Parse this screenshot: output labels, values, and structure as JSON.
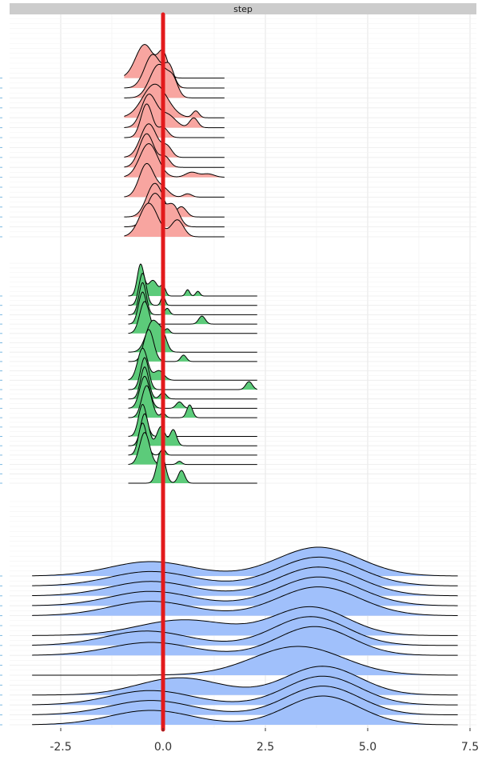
{
  "chart_data": {
    "type": "ridgeline",
    "title": "",
    "xlabel": "",
    "ylabel": "",
    "facet_label": "step",
    "x_ticks": [
      -2.5,
      0.0,
      2.5,
      5.0,
      7.5
    ],
    "x_tick_labels": [
      "-2.5",
      "0.0",
      "2.5",
      "5.0",
      "7.5"
    ],
    "xlim": [
      -3.8,
      7.8
    ],
    "grid": true,
    "vline": {
      "x": 0.0,
      "color": "#e31a1c"
    },
    "panels": [
      {
        "fill": "#f8a5a0",
        "x_range": [
          -0.95,
          1.5
        ],
        "groups": [
          {
            "rows": [
              {
                "peaks": [
                  [
                    -0.45,
                    0.22,
                    1.0
                  ],
                  [
                    0.0,
                    0.12,
                    0.7
                  ]
                ]
              },
              {
                "peaks": [
                  [
                    -0.25,
                    0.2,
                    1.0
                  ],
                  [
                    0.15,
                    0.12,
                    0.6
                  ]
                ]
              },
              {
                "peaks": [
                  [
                    -0.1,
                    0.22,
                    1.0
                  ],
                  [
                    0.25,
                    0.12,
                    0.4
                  ]
                ]
              }
            ]
          },
          {
            "rows": [
              {
                "peaks": [
                  [
                    -0.2,
                    0.3,
                    1.0
                  ],
                  [
                    0.8,
                    0.08,
                    0.2
                  ]
                ]
              },
              {
                "peaks": [
                  [
                    -0.35,
                    0.18,
                    1.0
                  ],
                  [
                    0.1,
                    0.2,
                    0.4
                  ],
                  [
                    0.75,
                    0.1,
                    0.3
                  ]
                ]
              },
              {
                "peaks": [
                  [
                    -0.4,
                    0.14,
                    1.0
                  ],
                  [
                    0.0,
                    0.12,
                    0.3
                  ]
                ]
              }
            ]
          },
          {
            "rows": [
              {
                "peaks": [
                  [
                    -0.35,
                    0.2,
                    1.0
                  ],
                  [
                    0.1,
                    0.12,
                    0.3
                  ]
                ]
              },
              {
                "peaks": [
                  [
                    -0.4,
                    0.18,
                    1.0
                  ],
                  [
                    0.05,
                    0.12,
                    0.3
                  ]
                ]
              },
              {
                "peaks": [
                  [
                    -0.35,
                    0.22,
                    1.0
                  ],
                  [
                    0.7,
                    0.15,
                    0.15
                  ],
                  [
                    1.1,
                    0.15,
                    0.1
                  ]
                ]
              }
            ]
          },
          {
            "rows": [
              {
                "peaks": [
                  [
                    -0.4,
                    0.18,
                    1.0
                  ],
                  [
                    0.0,
                    0.15,
                    0.25
                  ],
                  [
                    0.6,
                    0.1,
                    0.1
                  ]
                ]
              }
            ]
          },
          {
            "rows": [
              {
                "peaks": [
                  [
                    -0.2,
                    0.2,
                    1.0
                  ],
                  [
                    0.45,
                    0.12,
                    0.3
                  ]
                ]
              },
              {
                "peaks": [
                  [
                    -0.2,
                    0.2,
                    1.0
                  ],
                  [
                    0.25,
                    0.15,
                    0.6
                  ]
                ]
              },
              {
                "peaks": [
                  [
                    -0.35,
                    0.22,
                    1.0
                  ],
                  [
                    0.35,
                    0.15,
                    0.5
                  ]
                ]
              }
            ]
          }
        ]
      },
      {
        "fill": "#5ccb7a",
        "x_range": [
          -0.85,
          2.3
        ],
        "groups": [
          {
            "rows": [
              {
                "peaks": [
                  [
                    -0.55,
                    0.08,
                    1.0
                  ],
                  [
                    -0.25,
                    0.12,
                    0.5
                  ],
                  [
                    0.0,
                    0.06,
                    0.3
                  ],
                  [
                    0.6,
                    0.05,
                    0.2
                  ],
                  [
                    0.85,
                    0.05,
                    0.15
                  ]
                ]
              },
              {
                "peaks": [
                  [
                    -0.5,
                    0.09,
                    1.0
                  ],
                  [
                    0.0,
                    0.05,
                    0.3
                  ]
                ]
              },
              {
                "peaks": [
                  [
                    -0.5,
                    0.09,
                    1.0
                  ],
                  [
                    0.1,
                    0.06,
                    0.2
                  ]
                ]
              },
              {
                "peaks": [
                  [
                    -0.5,
                    0.1,
                    1.0
                  ],
                  [
                    0.95,
                    0.08,
                    0.25
                  ]
                ]
              },
              {
                "peaks": [
                  [
                    -0.45,
                    0.12,
                    1.0
                  ],
                  [
                    0.1,
                    0.06,
                    0.15
                  ]
                ]
              }
            ]
          },
          {
            "rows": [
              {
                "peaks": [
                  [
                    -0.25,
                    0.16,
                    1.0
                  ],
                  [
                    0.0,
                    0.1,
                    0.4
                  ]
                ]
              },
              {
                "peaks": [
                  [
                    -0.35,
                    0.12,
                    1.0
                  ],
                  [
                    0.5,
                    0.07,
                    0.2
                  ]
                ]
              }
            ]
          },
          {
            "rows": [
              {
                "peaks": [
                  [
                    -0.5,
                    0.12,
                    1.0
                  ],
                  [
                    -0.1,
                    0.12,
                    0.3
                  ]
                ]
              },
              {
                "peaks": [
                  [
                    -0.45,
                    0.1,
                    1.0
                  ],
                  [
                    2.1,
                    0.08,
                    0.25
                  ]
                ]
              },
              {
                "peaks": [
                  [
                    -0.45,
                    0.1,
                    1.0
                  ],
                  [
                    0.0,
                    0.08,
                    0.2
                  ]
                ]
              },
              {
                "peaks": [
                  [
                    -0.45,
                    0.12,
                    1.0
                  ],
                  [
                    0.4,
                    0.08,
                    0.2
                  ]
                ]
              },
              {
                "peaks": [
                  [
                    -0.4,
                    0.12,
                    1.0
                  ],
                  [
                    0.0,
                    0.06,
                    0.15
                  ],
                  [
                    0.65,
                    0.07,
                    0.4
                  ]
                ]
              }
            ]
          },
          {
            "rows": [
              {
                "peaks": [
                  [
                    -0.5,
                    0.1,
                    1.0
                  ]
                ]
              },
              {
                "peaks": [
                  [
                    -0.45,
                    0.1,
                    1.0
                  ],
                  [
                    -0.05,
                    0.1,
                    0.6
                  ],
                  [
                    0.25,
                    0.08,
                    0.5
                  ]
                ]
              },
              {
                "peaks": [
                  [
                    -0.5,
                    0.1,
                    1.0
                  ],
                  [
                    0.0,
                    0.06,
                    0.2
                  ]
                ]
              },
              {
                "peaks": [
                  [
                    -0.45,
                    0.12,
                    1.0
                  ],
                  [
                    0.4,
                    0.06,
                    0.1
                  ]
                ]
              }
            ]
          },
          {
            "rows": [
              {
                "peaks": [
                  [
                    -0.05,
                    0.1,
                    1.0
                  ],
                  [
                    0.45,
                    0.08,
                    0.4
                  ]
                ]
              }
            ]
          }
        ]
      },
      {
        "fill": "#a0c0fb",
        "x_range": [
          -3.2,
          7.2
        ],
        "groups": [
          {
            "rows": [
              {
                "peaks": [
                  [
                    -0.3,
                    1.0,
                    0.5
                  ],
                  [
                    3.8,
                    1.0,
                    1.0
                  ]
                ]
              },
              {
                "peaks": [
                  [
                    -0.3,
                    1.0,
                    0.5
                  ],
                  [
                    3.8,
                    1.0,
                    1.0
                  ]
                ]
              },
              {
                "peaks": [
                  [
                    -0.3,
                    1.0,
                    0.5
                  ],
                  [
                    3.8,
                    1.0,
                    1.0
                  ]
                ]
              },
              {
                "peaks": [
                  [
                    -0.3,
                    1.0,
                    0.5
                  ],
                  [
                    3.8,
                    1.0,
                    1.0
                  ]
                ]
              },
              {
                "peaks": [
                  [
                    -0.3,
                    1.0,
                    0.5
                  ],
                  [
                    3.8,
                    1.0,
                    1.0
                  ]
                ]
              }
            ]
          },
          {
            "rows": [
              {
                "peaks": [
                  [
                    0.5,
                    1.1,
                    0.55
                  ],
                  [
                    3.6,
                    0.9,
                    1.0
                  ]
                ]
              },
              {
                "peaks": [
                  [
                    -0.4,
                    1.0,
                    0.5
                  ],
                  [
                    3.6,
                    0.9,
                    1.0
                  ]
                ]
              },
              {
                "peaks": [
                  [
                    -0.3,
                    1.0,
                    0.45
                  ],
                  [
                    3.7,
                    0.9,
                    1.0
                  ]
                ]
              }
            ]
          },
          {
            "rows": [
              {
                "peaks": [
                  [
                    3.3,
                    1.1,
                    1.0
                  ]
                ]
              }
            ]
          },
          {
            "rows": [
              {
                "peaks": [
                  [
                    0.4,
                    1.0,
                    0.6
                  ],
                  [
                    3.9,
                    0.9,
                    1.0
                  ]
                ]
              },
              {
                "peaks": [
                  [
                    -0.3,
                    1.0,
                    0.5
                  ],
                  [
                    3.9,
                    0.9,
                    1.0
                  ]
                ]
              },
              {
                "peaks": [
                  [
                    -0.3,
                    1.0,
                    0.5
                  ],
                  [
                    3.9,
                    0.9,
                    1.0
                  ]
                ]
              },
              {
                "peaks": [
                  [
                    -0.3,
                    1.0,
                    0.5
                  ],
                  [
                    3.9,
                    0.9,
                    1.0
                  ]
                ]
              }
            ]
          }
        ]
      }
    ]
  }
}
